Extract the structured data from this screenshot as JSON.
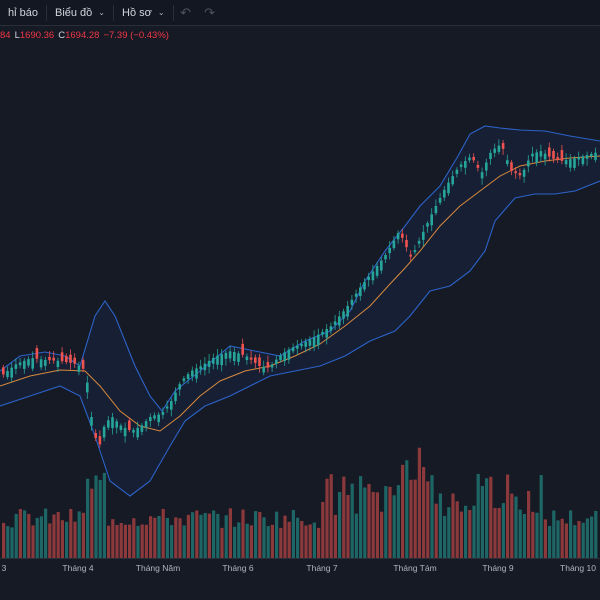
{
  "toolbar": {
    "indicators_label": "hỉ báo",
    "chart_label": "Biểu đồ",
    "profile_label": "Hồ sơ",
    "undo_icon": "undo-icon",
    "redo_icon": "redo-icon"
  },
  "ohlc": {
    "open_value": "84",
    "low_key": "L",
    "low_value": "1690.36",
    "close_key": "C",
    "close_value": "1694.28",
    "change_value": "−7.39 (−0.43%)"
  },
  "colors": {
    "background": "#161a25",
    "up_candle": "#26a69a",
    "down_candle": "#ef5350",
    "bollinger_band": "#2962ff",
    "moving_average": "#ff9800"
  },
  "x_axis": {
    "labels": [
      "3",
      "Tháng 4",
      "Tháng Năm",
      "Tháng 6",
      "Tháng 7",
      "Tháng Tám",
      "Tháng 9",
      "Tháng 10"
    ]
  },
  "chart_data": {
    "type": "candlestick",
    "series": [
      {
        "name": "price",
        "kind": "candlestick"
      },
      {
        "name": "bollinger",
        "kind": "band"
      },
      {
        "name": "ma",
        "kind": "line"
      },
      {
        "name": "volume",
        "kind": "bar"
      }
    ]
  }
}
